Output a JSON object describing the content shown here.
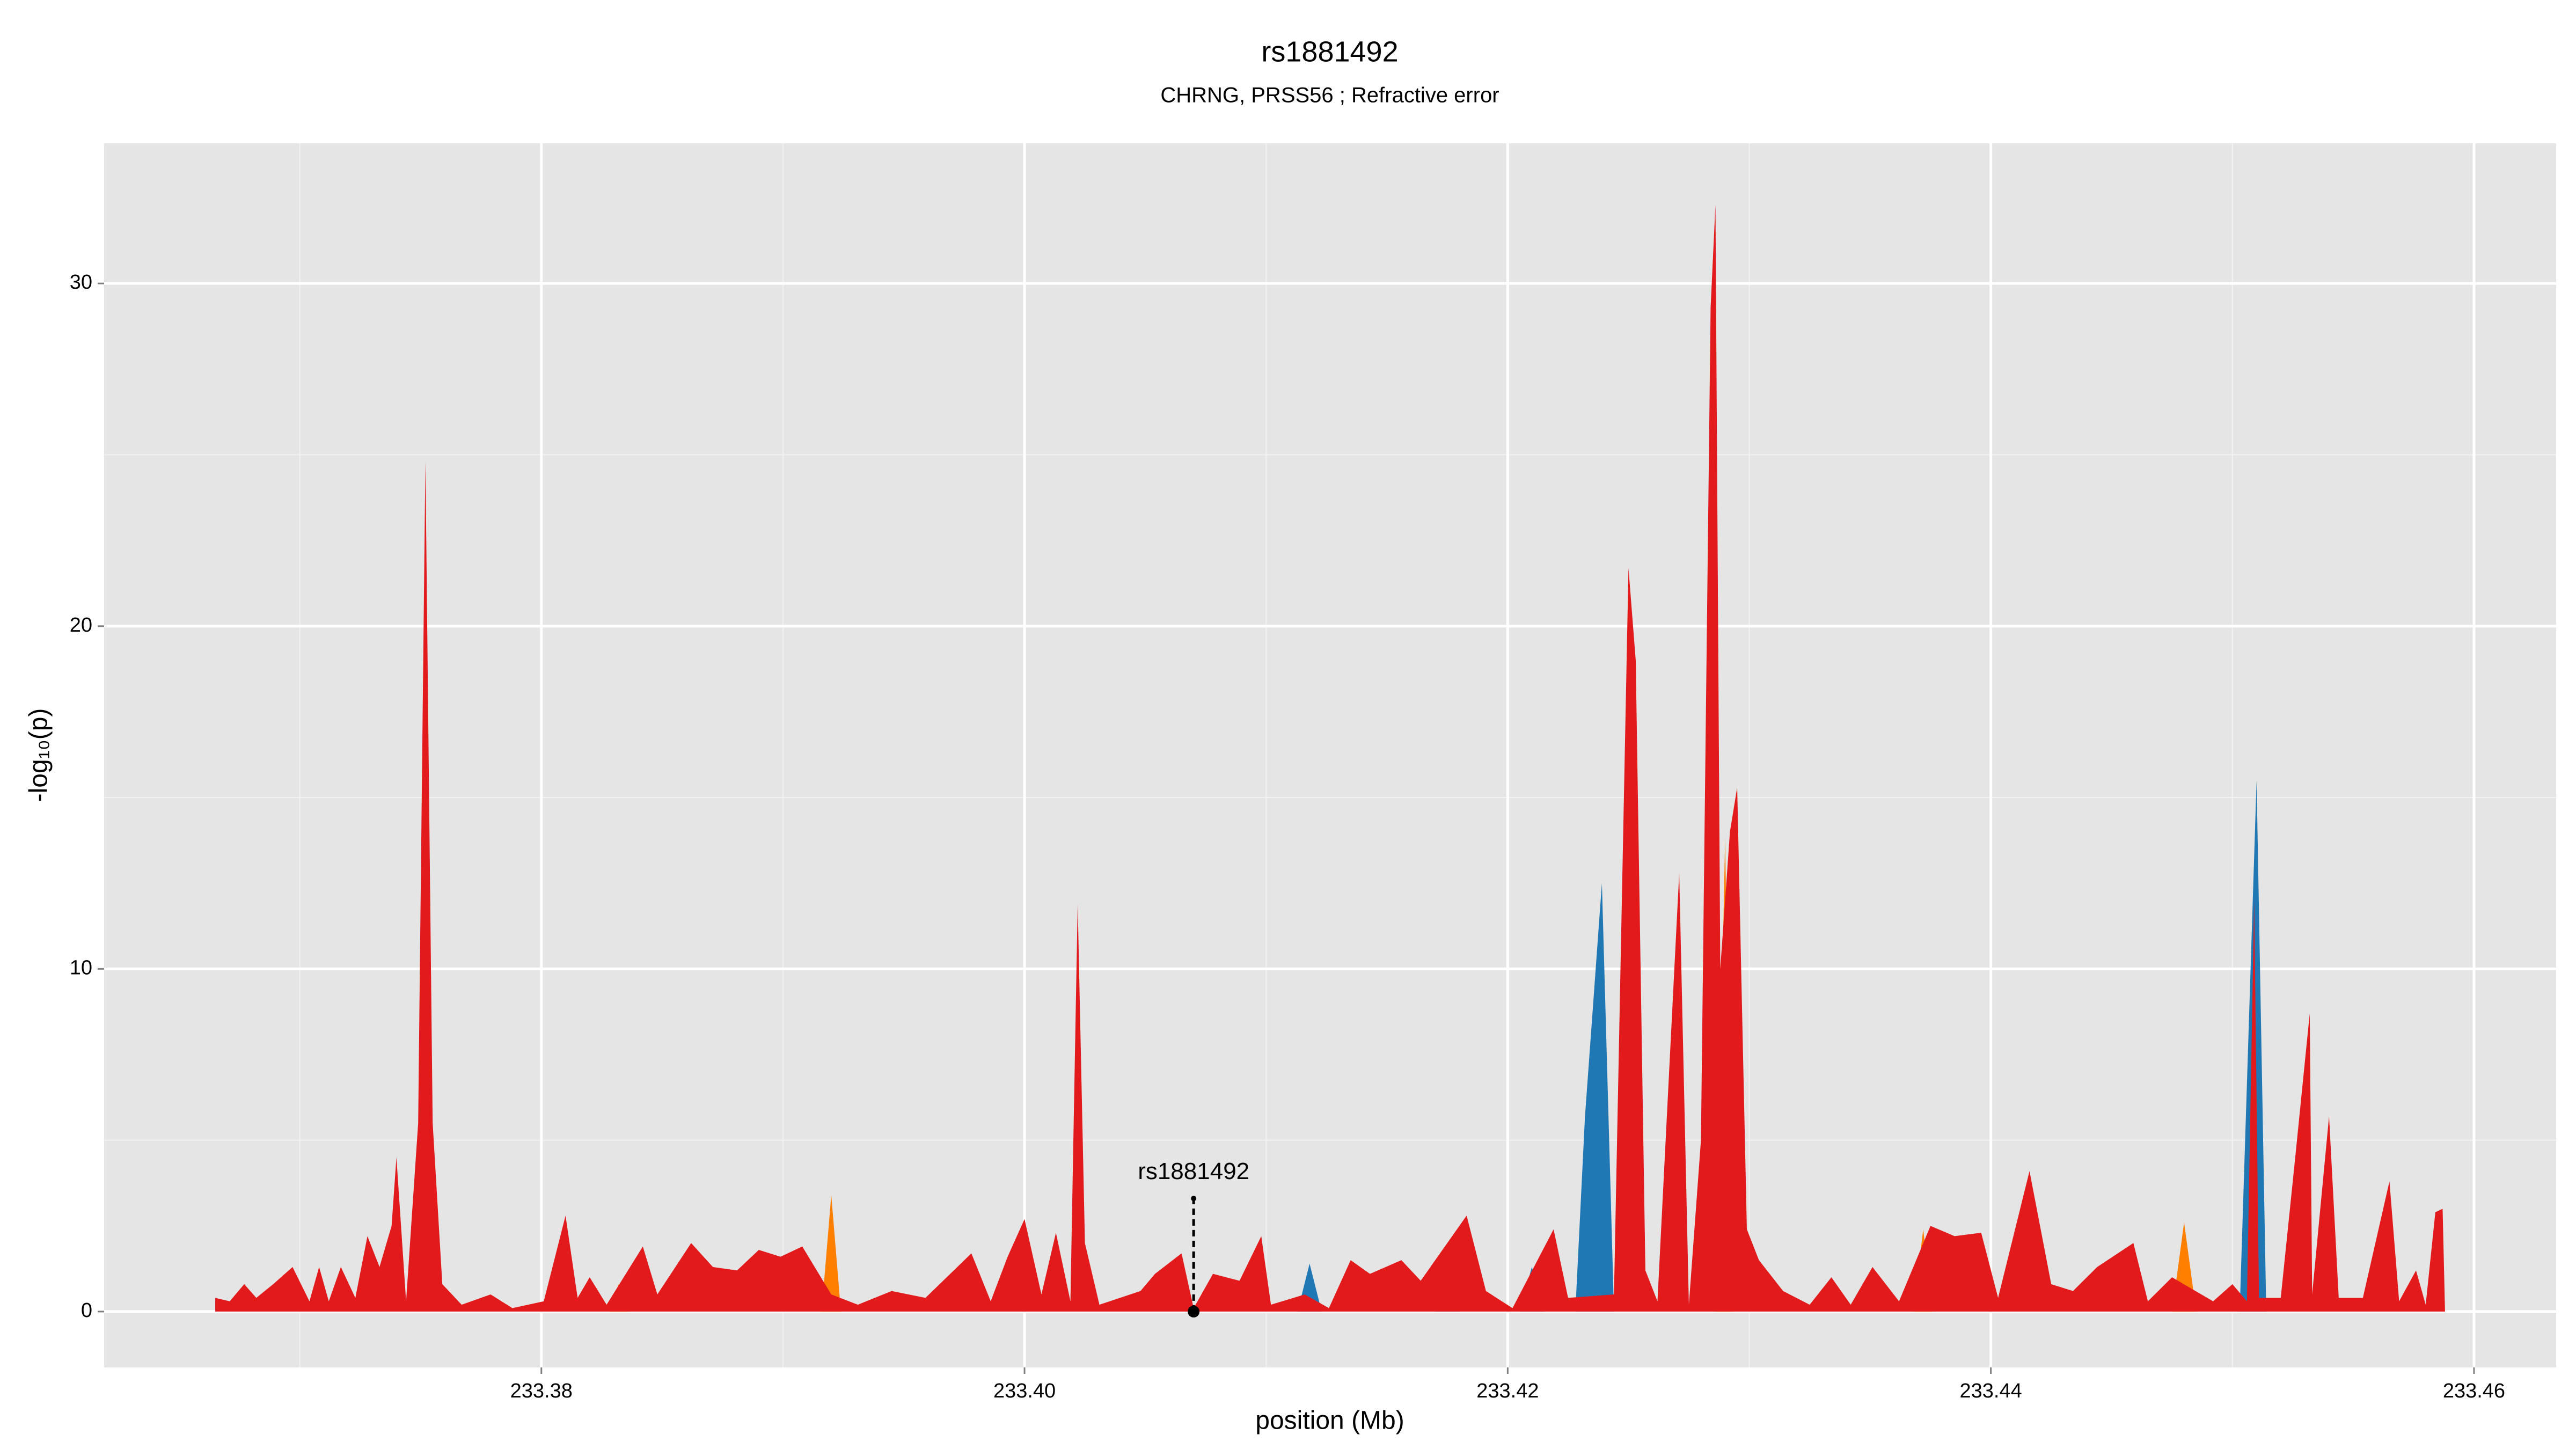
{
  "chart_data": {
    "type": "area",
    "title": "rs1881492",
    "subtitle": "CHRNG, PRSS56 ; Refractive error",
    "x_label": "position (Mb)",
    "y_label": "-log₁₀(p)",
    "xlim": [
      233.3619,
      233.4634
    ],
    "ylim": [
      -1.63,
      34.09
    ],
    "xticks": [
      233.38,
      {
        "value": 233.4,
        "label": "233.40"
      },
      233.42,
      233.44,
      233.46
    ],
    "yticks": [
      0,
      10,
      20,
      30
    ],
    "grid": true,
    "series": [
      {
        "color": "#ff7f00",
        "x": [
          233.3828,
          233.3832,
          233.3836,
          233.3916,
          233.392,
          233.3924,
          233.4286,
          233.429,
          233.4293,
          233.4368,
          233.4372,
          233.4376,
          233.4475,
          233.448,
          233.4485
        ],
        "values": [
          0,
          0.8,
          0,
          0,
          3.4,
          0,
          0,
          13.8,
          0,
          0,
          2.4,
          0,
          0,
          2.6,
          0
        ]
      },
      {
        "color": "#1f78b4",
        "x": [
          233.4113,
          233.4118,
          233.4123,
          233.417,
          233.4175,
          233.418,
          233.4205,
          233.421,
          233.4215,
          233.4228,
          233.4232,
          233.4239,
          233.4244,
          233.4503,
          233.451,
          233.4514
        ],
        "values": [
          0,
          1.4,
          0,
          0,
          1.7,
          0,
          0,
          1.3,
          0,
          0,
          5.7,
          12.5,
          0,
          0,
          15.5,
          0
        ]
      },
      {
        "color": "#e31a1c",
        "x": [
          233.3665,
          233.3671,
          233.3677,
          233.3682,
          233.3689,
          233.3697,
          233.3704,
          233.3708,
          233.3712,
          233.3717,
          233.3723,
          233.3728,
          233.3733,
          233.3738,
          233.374,
          233.3744,
          233.3749,
          233.3752,
          233.3755,
          233.3759,
          233.3767,
          233.3779,
          233.3788,
          233.3801,
          233.381,
          233.3815,
          233.382,
          233.3827,
          233.3842,
          233.3848,
          233.3862,
          233.3871,
          233.3881,
          233.389,
          233.3899,
          233.3908,
          233.392,
          233.3931,
          233.3945,
          233.3959,
          233.3978,
          233.3986,
          233.3993,
          233.4,
          233.4007,
          233.4013,
          233.4019,
          233.4022,
          233.4025,
          233.4031,
          233.4048,
          233.4054,
          233.4065,
          233.407,
          233.4078,
          233.4089,
          233.4098,
          233.4102,
          233.4116,
          233.4126,
          233.4135,
          233.4143,
          233.4156,
          233.4164,
          233.4183,
          233.4191,
          233.4202,
          233.4219,
          233.4225,
          233.4244,
          233.425,
          233.4253,
          233.4257,
          233.4262,
          233.4271,
          233.4275,
          233.428,
          233.4284,
          233.4286,
          233.4288,
          233.4292,
          233.4295,
          233.4299,
          233.4304,
          233.4314,
          233.4325,
          233.4334,
          233.4342,
          233.4351,
          233.4362,
          233.4375,
          233.4385,
          233.4396,
          233.4403,
          233.4416,
          233.4425,
          233.4434,
          233.4444,
          233.4459,
          233.4465,
          233.4475,
          233.4492,
          233.45,
          233.4506,
          233.4509,
          233.4511,
          233.452,
          233.4526,
          233.4532,
          233.4533,
          233.454,
          233.4544,
          233.4554,
          233.4565,
          233.4569,
          233.4576,
          233.458,
          233.4584,
          233.4587,
          233.4588
        ],
        "values": [
          0.4,
          0.3,
          0.8,
          0.4,
          0.8,
          1.3,
          0.3,
          1.3,
          0.3,
          1.3,
          0.4,
          2.2,
          1.3,
          2.5,
          4.5,
          0.3,
          5.5,
          24.8,
          5.5,
          0.8,
          0.2,
          0.5,
          0.1,
          0.3,
          2.8,
          0.4,
          1.0,
          0.2,
          1.9,
          0.5,
          2.0,
          1.3,
          1.2,
          1.8,
          1.6,
          1.9,
          0.5,
          0.2,
          0.6,
          0.4,
          1.7,
          0.3,
          1.6,
          2.7,
          0.5,
          2.3,
          0.3,
          11.9,
          2.0,
          0.2,
          0.6,
          1.1,
          1.7,
          0.1,
          1.1,
          0.9,
          2.2,
          0.2,
          0.5,
          0.1,
          1.5,
          1.1,
          1.5,
          0.9,
          2.8,
          0.6,
          0.1,
          2.4,
          0.4,
          0.5,
          21.7,
          19,
          1.2,
          0.3,
          12.8,
          0.2,
          5,
          29.3,
          32.3,
          10,
          14,
          15.3,
          2.4,
          1.5,
          0.6,
          0.2,
          1.0,
          0.2,
          1.3,
          0.3,
          2.5,
          2.2,
          2.3,
          0.4,
          4.1,
          0.8,
          0.6,
          1.3,
          2.0,
          0.3,
          1.0,
          0.3,
          0.8,
          0.3,
          12,
          0.4,
          0.4,
          4.5,
          8.7,
          0.5,
          5.7,
          0.4,
          0.4,
          3.8,
          0.3,
          1.2,
          0.2,
          2.9,
          3.0,
          0
        ]
      }
    ],
    "highlight": {
      "label": "rs1881492",
      "x": 233.407,
      "y": 3.3
    }
  }
}
